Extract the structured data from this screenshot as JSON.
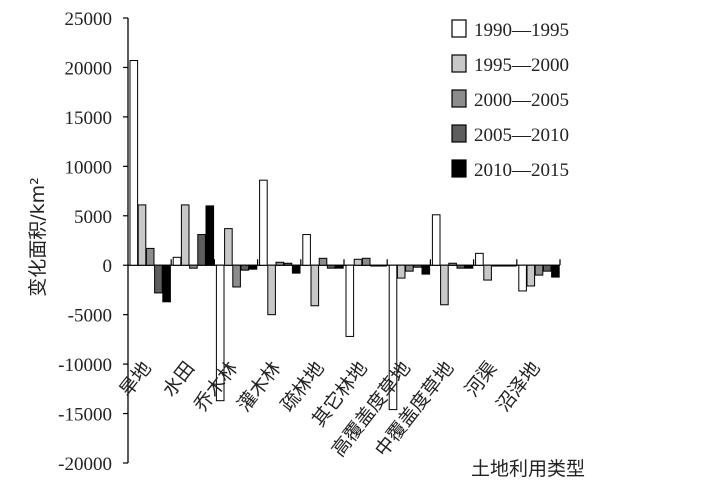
{
  "chart_data": {
    "type": "bar",
    "ylabel": "变化面积/km²",
    "xlabel": "土地利用类型",
    "ylim": [
      -20000,
      25000
    ],
    "ytick_step": 5000,
    "ytick_labels": [
      "-20000",
      "-15000",
      "-10000",
      "-5000",
      "0",
      "5000",
      "10000",
      "15000",
      "20000",
      "25000"
    ],
    "categories": [
      "旱地",
      "水田",
      "乔木林",
      "灌木林",
      "疏林地",
      "其它林地",
      "高覆盖度草地",
      "中覆盖度草地",
      "河渠",
      "沼泽地"
    ],
    "legend_position": "top-right",
    "series": [
      {
        "name": "1990—1995",
        "color": "#ffffff",
        "values": [
          20700,
          800,
          -13700,
          8600,
          3100,
          -7200,
          -14600,
          5100,
          1200,
          -2600
        ]
      },
      {
        "name": "1995—2000",
        "color": "#c8c8c8",
        "values": [
          6100,
          6100,
          3700,
          -5000,
          -4100,
          600,
          -1300,
          -4000,
          -1500,
          -2100
        ]
      },
      {
        "name": "2000—2005",
        "color": "#8c8c8c",
        "values": [
          1700,
          -300,
          -2200,
          300,
          700,
          700,
          -600,
          200,
          0,
          -1000
        ]
      },
      {
        "name": "2005—2010",
        "color": "#5e5e5e",
        "values": [
          -2800,
          3100,
          -500,
          200,
          -300,
          0,
          -200,
          -300,
          0,
          -600
        ]
      },
      {
        "name": "2010—2015",
        "color": "#000000",
        "values": [
          -3700,
          6000,
          -400,
          -800,
          -300,
          0,
          -900,
          -300,
          0,
          -1200
        ]
      }
    ]
  }
}
